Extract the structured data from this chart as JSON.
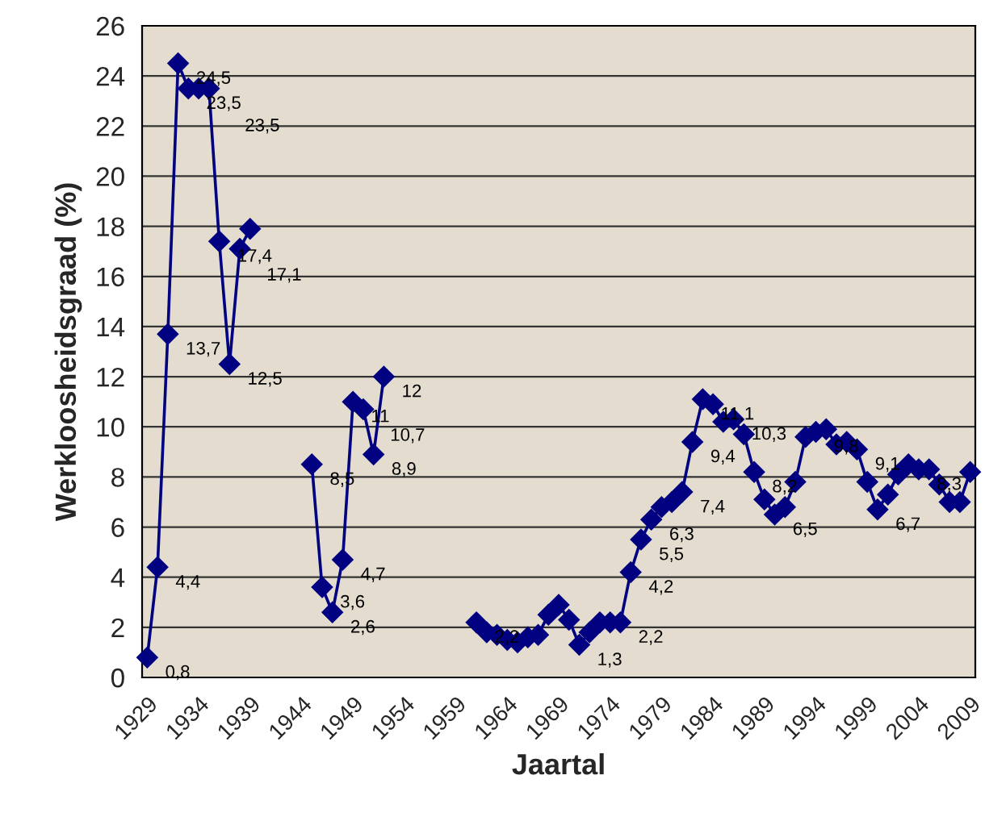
{
  "chart_data": {
    "type": "line",
    "xlabel": "Jaartal",
    "ylabel": "Werkloosheidsgraad (%)",
    "categories": [
      "1929",
      null,
      null,
      null,
      null,
      "1934",
      null,
      null,
      null,
      null,
      "1939",
      null,
      null,
      null,
      null,
      "1944",
      null,
      null,
      null,
      null,
      "1949",
      null,
      null,
      null,
      null,
      "1954",
      null,
      null,
      null,
      null,
      "1959",
      null,
      null,
      null,
      null,
      "1964",
      null,
      null,
      null,
      null,
      "1969",
      null,
      null,
      null,
      null,
      "1974",
      null,
      null,
      null,
      null,
      "1979",
      null,
      null,
      null,
      null,
      "1984",
      null,
      null,
      null,
      null,
      "1989",
      null,
      null,
      null,
      null,
      "1994",
      null,
      null,
      null,
      null,
      "1999",
      null,
      null,
      null,
      null,
      "2004",
      null,
      null,
      null,
      null,
      "2009"
    ],
    "series": [
      {
        "color": "#000080",
        "values": [
          0.8,
          4.4,
          13.7,
          24.5,
          23.5,
          23.5,
          23.5,
          17.4,
          12.5,
          17.1,
          17.9,
          null,
          null,
          null,
          null,
          null,
          8.5,
          3.6,
          2.6,
          4.7,
          11,
          10.7,
          8.9,
          12,
          null,
          null,
          null,
          null,
          null,
          null,
          null,
          null,
          2.2,
          1.8,
          1.7,
          1.5,
          1.4,
          1.6,
          1.7,
          2.5,
          2.9,
          2.3,
          1.3,
          1.8,
          2.2,
          2.2,
          2.2,
          4.2,
          5.5,
          6.3,
          6.8,
          7.0,
          7.4,
          9.4,
          11.1,
          10.9,
          10.2,
          10.3,
          9.7,
          8.2,
          7.1,
          6.5,
          6.8,
          7.8,
          9.6,
          9.8,
          9.9,
          9.3,
          9.4,
          9.1,
          7.8,
          6.7,
          7.3,
          8.1,
          8.5,
          8.3,
          8.3,
          7.7,
          7.0,
          7.0,
          8.2
        ],
        "value_labels": [
          "0,8",
          "4,4",
          "13,7",
          "24,5",
          "23,5",
          null,
          "23,5",
          "17,4",
          "12,5",
          "17,1",
          null,
          null,
          null,
          null,
          null,
          null,
          "8,5",
          "3,6",
          "2,6",
          "4,7",
          "11",
          "10,7",
          "8,9",
          "12",
          null,
          null,
          null,
          null,
          null,
          null,
          null,
          null,
          "2,2",
          null,
          null,
          null,
          null,
          null,
          null,
          null,
          null,
          null,
          "1,3",
          null,
          null,
          null,
          "2,2",
          "4,2",
          "5,5",
          "6,3",
          null,
          null,
          "7,4",
          "9,4",
          "11,1",
          null,
          null,
          "10,3",
          null,
          "8,2",
          null,
          "6,5",
          null,
          null,
          null,
          "9,8",
          null,
          null,
          null,
          "9,1",
          null,
          "6,7",
          null,
          null,
          null,
          "8,3",
          null,
          null,
          null,
          null,
          null
        ]
      }
    ],
    "ylim": [
      0,
      26
    ],
    "yticks": [
      0,
      2,
      4,
      6,
      8,
      10,
      12,
      14,
      16,
      18,
      20,
      22,
      24,
      26
    ],
    "grid": "y",
    "marker": "diamond",
    "line_style": "solid"
  }
}
